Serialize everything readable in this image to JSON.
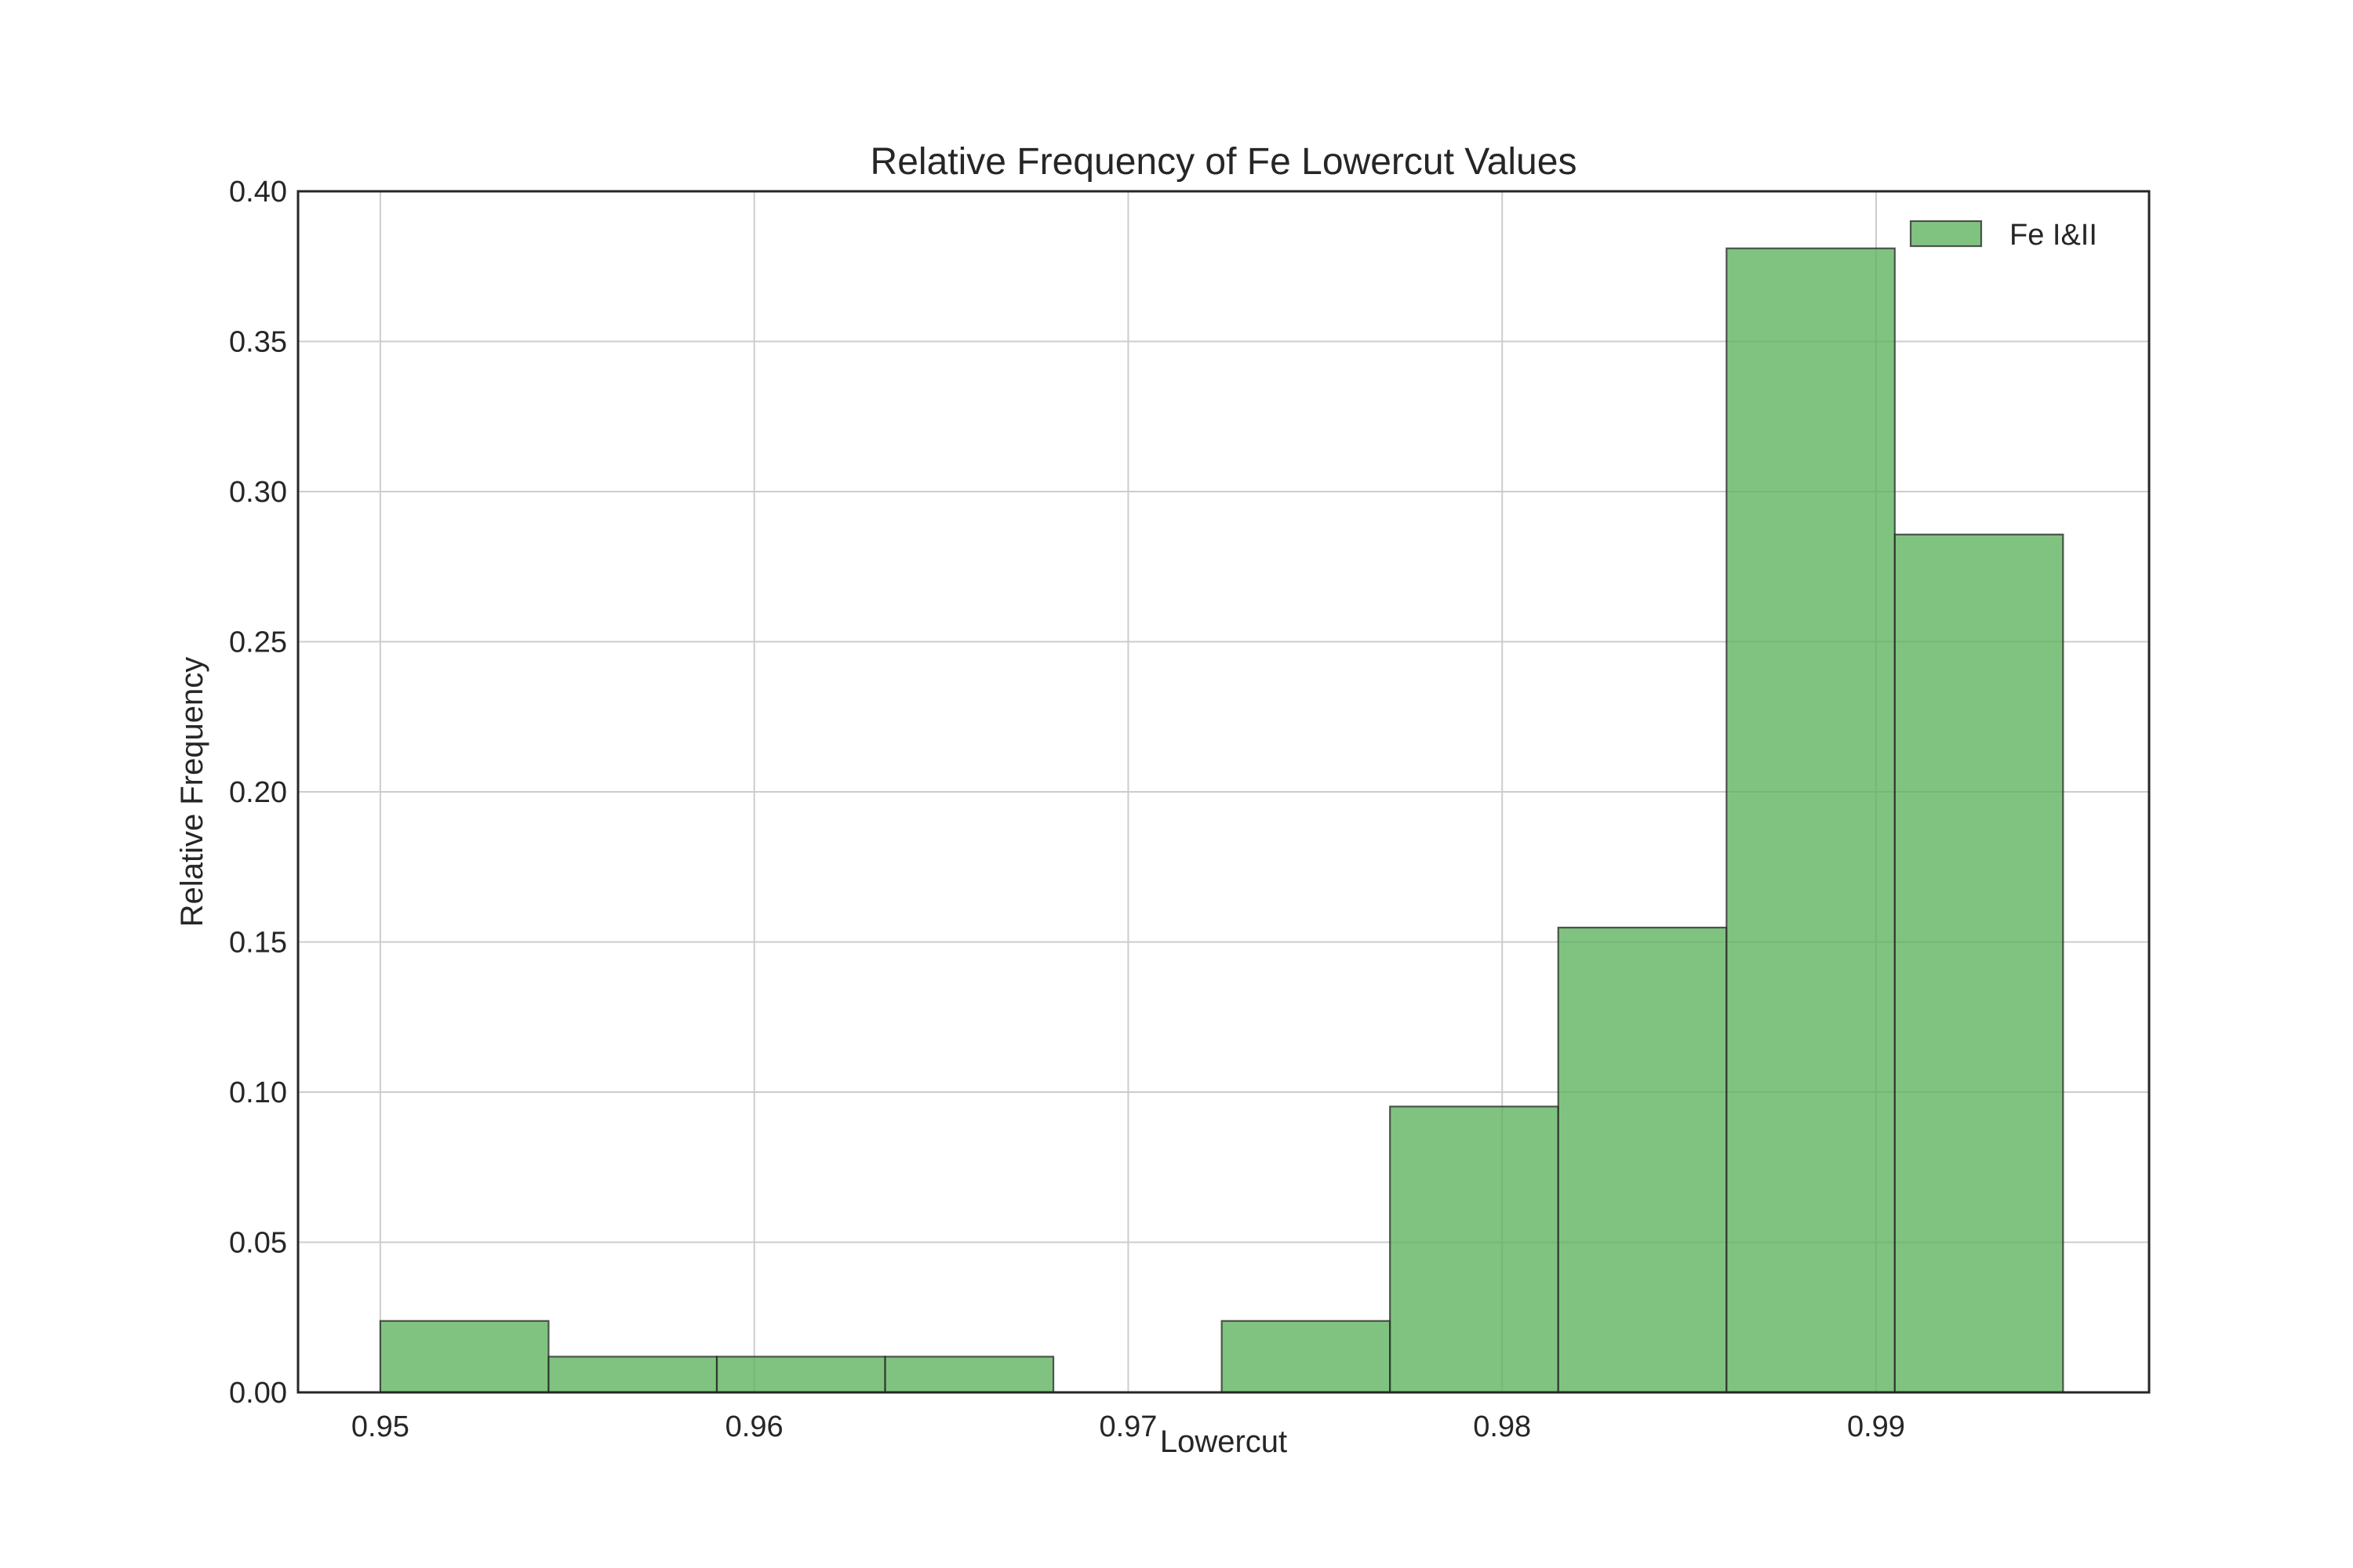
{
  "chart_data": {
    "type": "bar",
    "subtype": "histogram",
    "title": "Relative Frequency of Fe Lowercut Values",
    "xlabel": "Lowercut",
    "ylabel": "Relative Frequency",
    "xlim": [
      0.9478,
      0.9973
    ],
    "ylim": [
      0,
      0.4
    ],
    "xticks": [
      0.95,
      0.96,
      0.97,
      0.98,
      0.99
    ],
    "xtick_labels": [
      "0.95",
      "0.96",
      "0.97",
      "0.98",
      "0.99"
    ],
    "yticks": [
      0.0,
      0.05,
      0.1,
      0.15,
      0.2,
      0.25,
      0.3,
      0.35,
      0.4
    ],
    "ytick_labels": [
      "0.00",
      "0.05",
      "0.10",
      "0.15",
      "0.20",
      "0.25",
      "0.30",
      "0.35",
      "0.40"
    ],
    "grid": true,
    "legend_position": "top-right",
    "series": [
      {
        "name": "Fe I&II",
        "color": "#5cb25c",
        "bin_edges": [
          0.95,
          0.9545,
          0.959,
          0.9635,
          0.968,
          0.9725,
          0.977,
          0.9815,
          0.986,
          0.9905,
          0.995
        ],
        "values": [
          0.0238,
          0.0119,
          0.0119,
          0.0119,
          0.0,
          0.0238,
          0.0952,
          0.1548,
          0.381,
          0.2857
        ]
      }
    ]
  }
}
